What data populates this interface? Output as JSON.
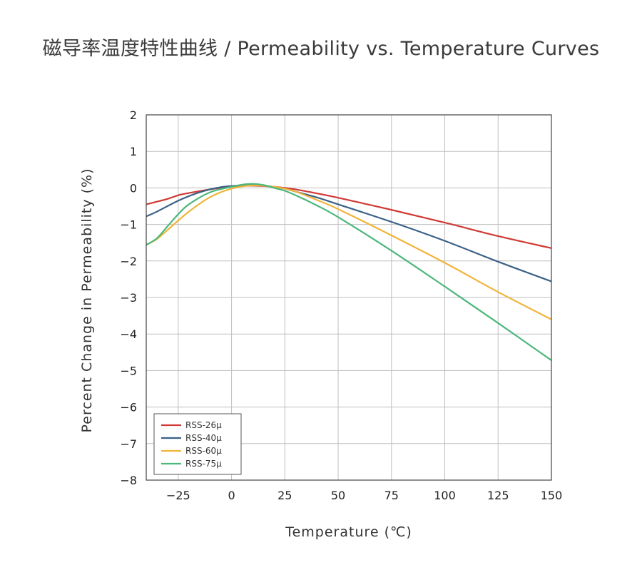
{
  "chart_data": {
    "type": "line",
    "title": "磁导率温度特性曲线 / Permeability vs. Temperature Curves",
    "xlabel": "Temperature (℃)",
    "ylabel": "Percent Change in Permeability (%)",
    "xlim": [
      -40,
      150
    ],
    "ylim": [
      -8,
      2
    ],
    "xticks": [
      -25,
      0,
      25,
      50,
      75,
      100,
      125,
      150
    ],
    "yticks": [
      2,
      1,
      0,
      -1,
      -2,
      -3,
      -4,
      -5,
      -6,
      -7,
      -8
    ],
    "grid": true,
    "legend_position": "bottom-left",
    "series": [
      {
        "name": "RSS-26μ",
        "color": "#d03a35",
        "x": [
          -40,
          -30,
          -25,
          -20,
          -10,
          0,
          10,
          20,
          25,
          30,
          40,
          50,
          75,
          100,
          125,
          150
        ],
        "y": [
          -0.45,
          -0.3,
          -0.2,
          -0.14,
          -0.04,
          0.04,
          0.06,
          0.03,
          0.0,
          -0.04,
          -0.15,
          -0.27,
          -0.6,
          -0.95,
          -1.32,
          -1.65
        ]
      },
      {
        "name": "RSS-40μ",
        "color": "#3b6187",
        "x": [
          -40,
          -35,
          -25,
          -15,
          -5,
          5,
          10,
          15,
          20,
          25,
          30,
          40,
          50,
          75,
          100,
          125,
          150
        ],
        "y": [
          -0.78,
          -0.65,
          -0.35,
          -0.12,
          0.02,
          0.07,
          0.08,
          0.06,
          0.03,
          -0.02,
          -0.1,
          -0.26,
          -0.45,
          -0.93,
          -1.45,
          -2.02,
          -2.56
        ]
      },
      {
        "name": "RSS-60μ",
        "color": "#f0b43a",
        "x": [
          -40,
          -35,
          -30,
          -20,
          -10,
          0,
          10,
          20,
          25,
          30,
          40,
          50,
          75,
          100,
          125,
          150
        ],
        "y": [
          -1.56,
          -1.4,
          -1.15,
          -0.65,
          -0.25,
          -0.02,
          0.07,
          0.03,
          -0.02,
          -0.1,
          -0.33,
          -0.58,
          -1.3,
          -2.05,
          -2.85,
          -3.6
        ]
      },
      {
        "name": "RSS-75μ",
        "color": "#4cb77a",
        "x": [
          -40,
          -35,
          -30,
          -25,
          -20,
          -10,
          0,
          5,
          10,
          15,
          20,
          25,
          30,
          40,
          50,
          75,
          100,
          125,
          150
        ],
        "y": [
          -1.56,
          -1.38,
          -1.05,
          -0.72,
          -0.45,
          -0.12,
          0.03,
          0.09,
          0.11,
          0.08,
          0.0,
          -0.08,
          -0.2,
          -0.48,
          -0.8,
          -1.72,
          -2.7,
          -3.7,
          -4.72
        ]
      }
    ]
  }
}
